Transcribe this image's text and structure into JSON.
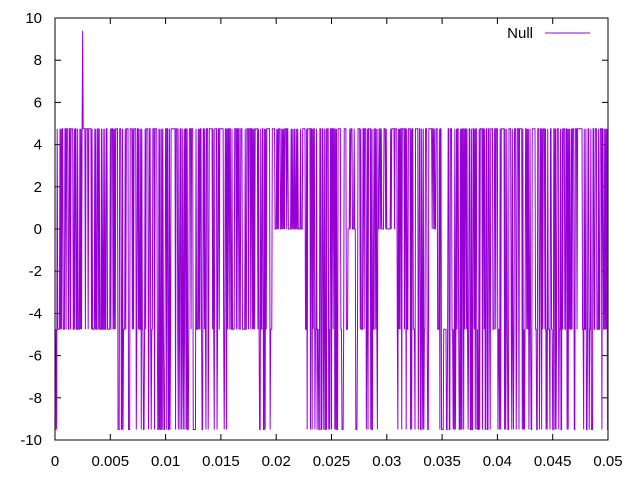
{
  "chart_data": {
    "type": "line",
    "title": "",
    "xlabel": "",
    "ylabel": "",
    "xlim": [
      0,
      0.05
    ],
    "ylim": [
      -10,
      10
    ],
    "x_ticks": [
      0,
      0.005,
      0.01,
      0.015,
      0.02,
      0.025,
      0.03,
      0.035,
      0.04,
      0.045,
      0.05
    ],
    "x_tick_labels": [
      "0",
      "0.005",
      "0.01",
      "0.015",
      "0.02",
      "0.025",
      "0.03",
      "0.035",
      "0.04",
      "0.045",
      "0.05"
    ],
    "y_ticks": [
      -10,
      -8,
      -6,
      -4,
      -2,
      0,
      2,
      4,
      6,
      8,
      10
    ],
    "y_tick_labels": [
      "-10",
      "-8",
      "-6",
      "-4",
      "-2",
      "0",
      "2",
      "4",
      "6",
      "8",
      "10"
    ],
    "grid": false,
    "legend_position": "top-right",
    "series": [
      {
        "name": "Null",
        "color": "#9400d3",
        "levels": [
          -9.5,
          -4.75,
          0,
          4.75,
          9.5
        ],
        "x_step": 5e-05,
        "spike": {
          "x": 0.0025,
          "y": 9.4
        },
        "zero_regions": [
          [
            0.0199,
            0.0225
          ],
          [
            0.0265,
            0.0272
          ],
          [
            0.0292,
            0.0308
          ],
          [
            0.0338,
            0.0345
          ]
        ],
        "low_gaps": [
          [
            0.0001,
            0.0055
          ],
          [
            0.0158,
            0.0185
          ]
        ]
      }
    ]
  }
}
